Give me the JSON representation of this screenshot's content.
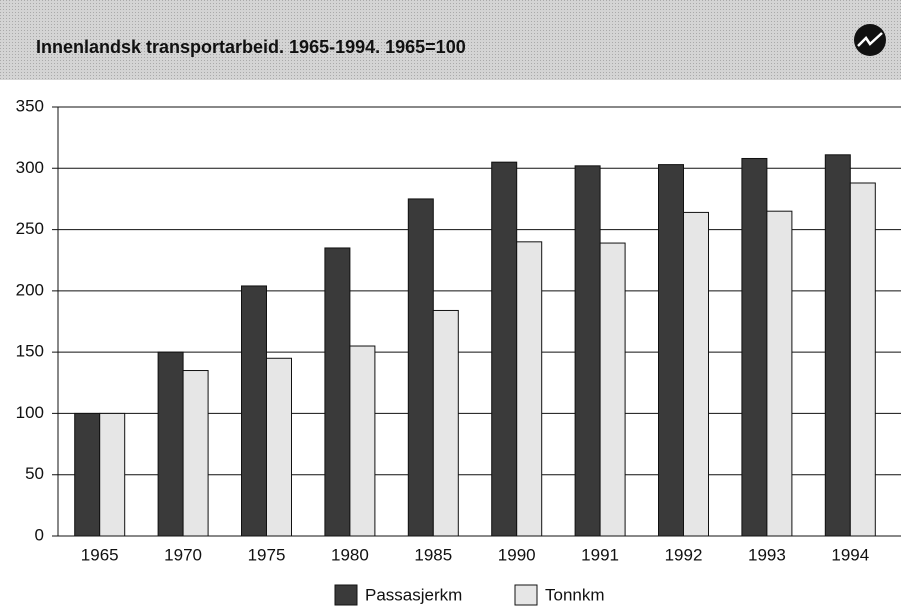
{
  "chart_data": {
    "type": "bar",
    "title": "Innenlandsk transportarbeid. 1965-1994. 1965=100",
    "categories": [
      "1965",
      "1970",
      "1975",
      "1980",
      "1985",
      "1990",
      "1991",
      "1992",
      "1993",
      "1994"
    ],
    "series": [
      {
        "name": "Passasjerkm",
        "color": "#3a3a3a",
        "values": [
          100,
          150,
          204,
          235,
          275,
          305,
          302,
          303,
          308,
          311
        ]
      },
      {
        "name": "Tonnkm",
        "color": "#e6e6e6",
        "values": [
          100,
          135,
          145,
          155,
          184,
          240,
          239,
          264,
          265,
          288
        ]
      }
    ],
    "ylim": [
      0,
      350
    ],
    "yticks": [
      0,
      50,
      100,
      150,
      200,
      250,
      300,
      350
    ],
    "grid": true
  }
}
